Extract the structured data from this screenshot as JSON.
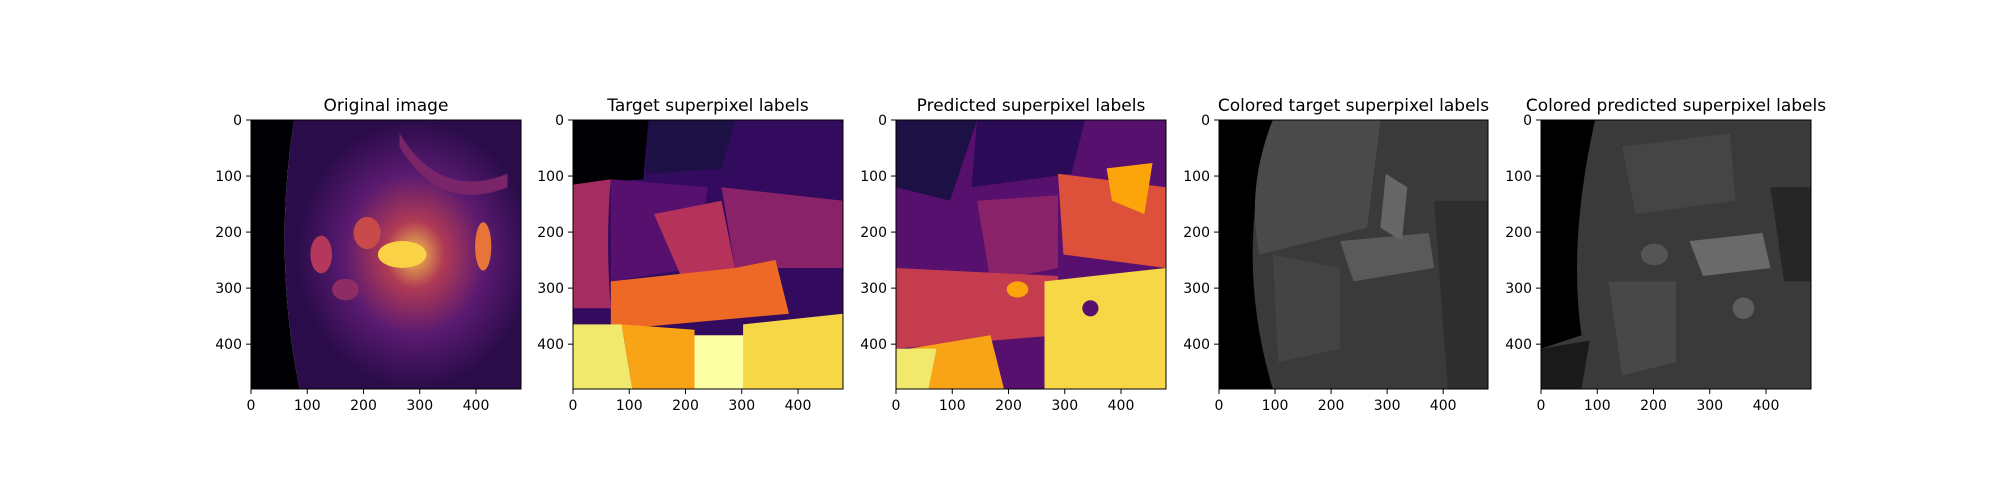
{
  "chart_data": [
    {
      "type": "heatmap",
      "title": "Original image",
      "colormap": "inferno",
      "xticks": [
        "0",
        "100",
        "200",
        "300",
        "400"
      ],
      "yticks": [
        "0",
        "100",
        "200",
        "300",
        "400"
      ],
      "xlim": [
        0,
        480
      ],
      "ylim": [
        480,
        0
      ]
    },
    {
      "type": "heatmap",
      "title": "Target superpixel labels",
      "colormap": "inferno",
      "xticks": [
        "0",
        "100",
        "200",
        "300",
        "400"
      ],
      "yticks": [
        "0",
        "100",
        "200",
        "300",
        "400"
      ],
      "xlim": [
        0,
        480
      ],
      "ylim": [
        480,
        0
      ]
    },
    {
      "type": "heatmap",
      "title": "Predicted superpixel labels",
      "colormap": "inferno",
      "xticks": [
        "0",
        "100",
        "200",
        "300",
        "400"
      ],
      "yticks": [
        "0",
        "100",
        "200",
        "300",
        "400"
      ],
      "xlim": [
        0,
        480
      ],
      "ylim": [
        480,
        0
      ]
    },
    {
      "type": "heatmap",
      "title": "Colored target superpixel labels",
      "colormap": "gray",
      "xticks": [
        "0",
        "100",
        "200",
        "300",
        "400"
      ],
      "yticks": [
        "0",
        "100",
        "200",
        "300",
        "400"
      ],
      "xlim": [
        0,
        480
      ],
      "ylim": [
        480,
        0
      ]
    },
    {
      "type": "heatmap",
      "title": "Colored predicted superpixel labels",
      "colormap": "gray",
      "xticks": [
        "0",
        "100",
        "200",
        "300",
        "400"
      ],
      "yticks": [
        "0",
        "100",
        "200",
        "300",
        "400"
      ],
      "xlim": [
        0,
        480
      ],
      "ylim": [
        480,
        0
      ]
    }
  ]
}
